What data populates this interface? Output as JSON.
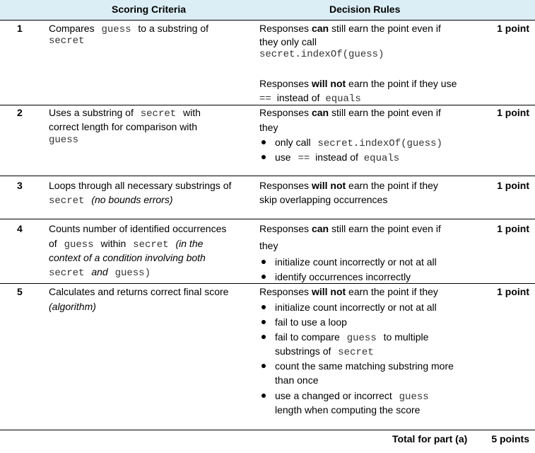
{
  "header": {
    "criteria": "Scoring Criteria",
    "rules": "Decision Rules"
  },
  "rows": [
    {
      "num": "1",
      "points": "1 point",
      "criteria": {
        "a": "Compares",
        "b": "guess",
        "c": "to a substring of",
        "d": "secret"
      },
      "rules": {
        "l1a": "Responses",
        "l1b": "can",
        "l1c": "still earn the point even if",
        "l2": "they only call",
        "l3": "secret.indexOf(guess)",
        "l4a": "Responses",
        "l4b": "will not",
        "l4c": "earn the point if they use",
        "l5a": "==",
        "l5b": "instead of",
        "l5c": "equals"
      }
    },
    {
      "num": "2",
      "points": "1 point",
      "criteria": {
        "a": "Uses a substring of",
        "b": "secret",
        "c": "with",
        "d": "correct length for comparison with",
        "e": "guess"
      },
      "rules": {
        "l1a": "Responses",
        "l1b": "can",
        "l1c": "still earn the point even if",
        "l2": "they",
        "b1a": "only call",
        "b1b": "secret.indexOf(guess)",
        "b2a": "use",
        "b2b": "==",
        "b2c": "instead of",
        "b2d": "equals"
      }
    },
    {
      "num": "3",
      "points": "1 point",
      "criteria": {
        "a": "Loops through all necessary substrings of",
        "b": "secret",
        "c": "(no bounds errors)"
      },
      "rules": {
        "l1a": "Responses",
        "l1b": "will not",
        "l1c": "earn the point if they",
        "l2": "skip overlapping occurrences"
      }
    },
    {
      "num": "4",
      "points": "1 point",
      "criteria": {
        "a": "Counts number of identified occurrences",
        "b1": "of",
        "b2": "guess",
        "b3": "within",
        "b4": "secret",
        "b5": "(in the",
        "c": "context of a condition involving both",
        "d1": "secret",
        "d2": "and",
        "d3": "guess)"
      },
      "rules": {
        "l1a": "Responses",
        "l1b": "can",
        "l1c": "still earn the point even if",
        "l2": "they",
        "b1": "initialize count incorrectly or not at all",
        "b2": "identify occurrences incorrectly"
      }
    },
    {
      "num": "5",
      "points": "1 point",
      "criteria": {
        "a": "Calculates and returns correct final score",
        "b": "(algorithm)"
      },
      "rules": {
        "l1a": "Responses",
        "l1b": "will not",
        "l1c": "earn the point if they",
        "b1": "initialize count incorrectly or not at all",
        "b2": "fail to use a loop",
        "b3a": "fail to compare",
        "b3b": "guess",
        "b3c": "to multiple",
        "b3d": "substrings of",
        "b3e": "secret",
        "b4a": "count the same matching substring  more",
        "b4b": "than once",
        "b5a": "use a changed or incorrect",
        "b5b": "guess",
        "b5c": "length when computing the score"
      }
    }
  ],
  "footer": {
    "label": "Total for part (a)",
    "points": "5 points"
  }
}
